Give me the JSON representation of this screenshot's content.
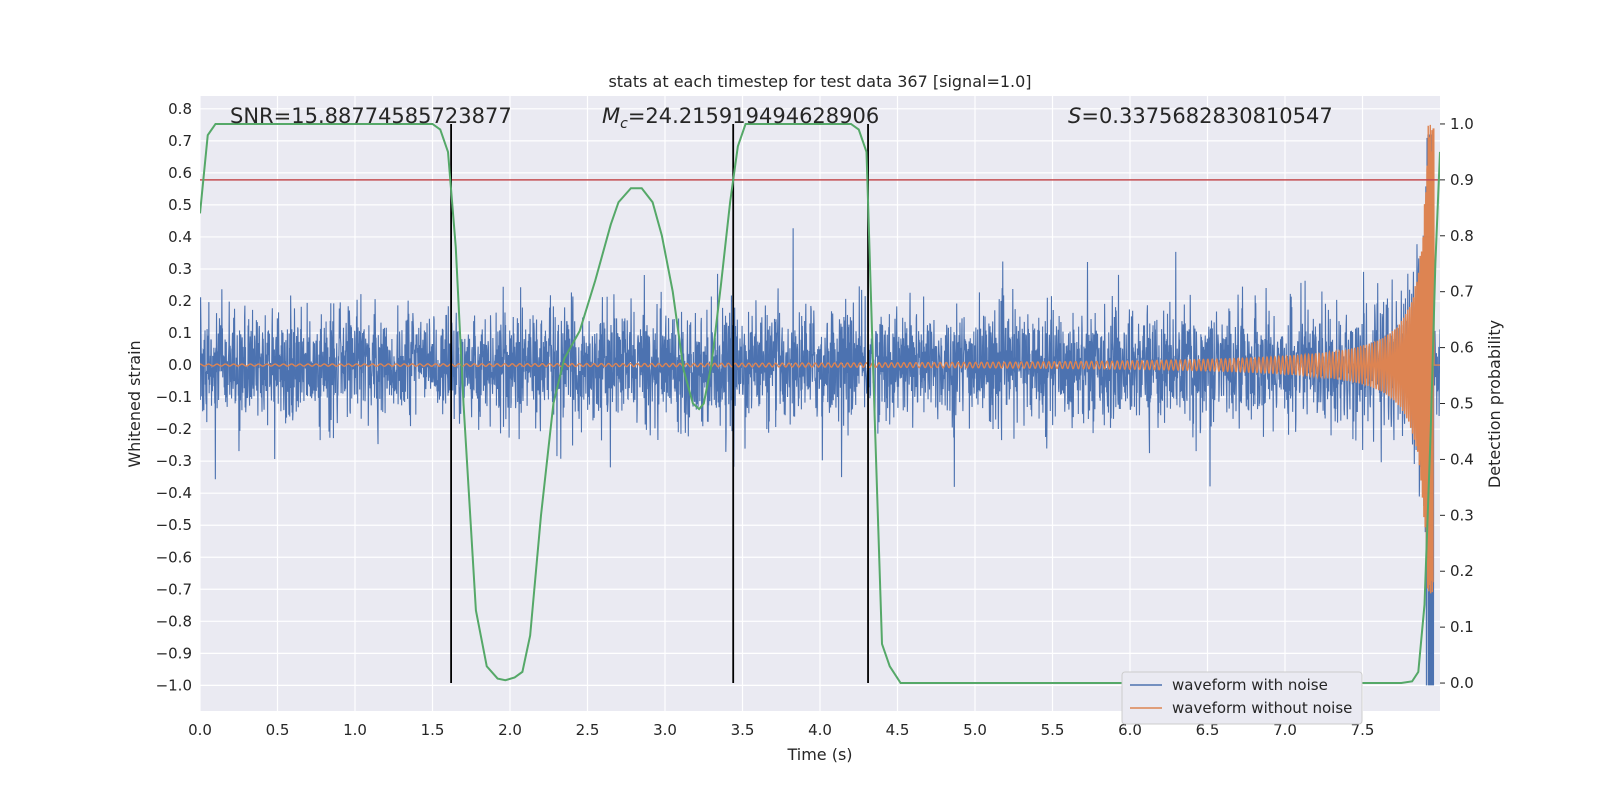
{
  "chart_data": {
    "type": "line",
    "title": "stats at each timestep for test data 367 [signal=1.0]",
    "xlabel": "Time (s)",
    "ylabel_left": "Whitened strain",
    "ylabel_right": "Detection probability",
    "xlim": [
      0.0,
      8.0
    ],
    "ylim_left": [
      -1.08,
      0.84
    ],
    "ylim_right": [
      -0.05,
      1.05
    ],
    "x_ticks": [
      "0.0",
      "0.5",
      "1.0",
      "1.5",
      "2.0",
      "2.5",
      "3.0",
      "3.5",
      "4.0",
      "4.5",
      "5.0",
      "5.5",
      "6.0",
      "6.5",
      "7.0",
      "7.5"
    ],
    "x_tick_values": [
      0.0,
      0.5,
      1.0,
      1.5,
      2.0,
      2.5,
      3.0,
      3.5,
      4.0,
      4.5,
      5.0,
      5.5,
      6.0,
      6.5,
      7.0,
      7.5
    ],
    "y_left_ticks": [
      "0.8",
      "0.7",
      "0.6",
      "0.5",
      "0.4",
      "0.3",
      "0.2",
      "0.1",
      "0.0",
      "−0.1",
      "−0.2",
      "−0.3",
      "−0.4",
      "−0.5",
      "−0.6",
      "−0.7",
      "−0.8",
      "−0.9",
      "−1.0"
    ],
    "y_left_tick_values": [
      0.8,
      0.7,
      0.6,
      0.5,
      0.4,
      0.3,
      0.2,
      0.1,
      0.0,
      -0.1,
      -0.2,
      -0.3,
      -0.4,
      -0.5,
      -0.6,
      -0.7,
      -0.8,
      -0.9,
      -1.0
    ],
    "y_right_ticks": [
      "1.0",
      "0.9",
      "0.8",
      "0.7",
      "0.6",
      "0.5",
      "0.4",
      "0.3",
      "0.2",
      "0.1",
      "0.0"
    ],
    "y_right_tick_values": [
      1.0,
      0.9,
      0.8,
      0.7,
      0.6,
      0.5,
      0.4,
      0.3,
      0.2,
      0.1,
      0.0
    ],
    "grid": true,
    "legend_position": "bottom-right",
    "annotations": {
      "snr": "SNR=15.88774585723877",
      "mc_prefix": "M",
      "mc_sub": "c",
      "mc_value": "=24.215919494628906",
      "s_prefix": "S",
      "s_value": "=0.3375682830810547"
    },
    "threshold_line": {
      "axis": "right",
      "value": 0.9,
      "color": "#c44e52"
    },
    "vertical_lines": [
      1.62,
      3.44,
      4.31
    ],
    "series": [
      {
        "name": "waveform with noise",
        "axis": "left",
        "color": "#4c72b0",
        "description_values": {
          "noise_amplitude_typical": 0.2,
          "peak_near_end": 0.75,
          "min_near_end": -1.0
        }
      },
      {
        "name": "waveform without noise",
        "axis": "left",
        "color": "#dd8452",
        "description_values": {
          "chirp_start_amplitude": 0.003,
          "chirp_end_amplitude": 0.75,
          "end_time": 7.96
        }
      },
      {
        "axis": "right",
        "color": "#55a868",
        "x": [
          0.0,
          0.05,
          0.1,
          0.2,
          0.3,
          0.5,
          0.8,
          1.0,
          1.2,
          1.4,
          1.5,
          1.55,
          1.6,
          1.65,
          1.7,
          1.78,
          1.85,
          1.92,
          1.97,
          2.03,
          2.08,
          2.13,
          2.2,
          2.28,
          2.35,
          2.45,
          2.55,
          2.65,
          2.7,
          2.78,
          2.85,
          2.92,
          2.98,
          3.05,
          3.12,
          3.18,
          3.22,
          3.25,
          3.3,
          3.36,
          3.42,
          3.47,
          3.52,
          3.58,
          3.65,
          3.8,
          4.0,
          4.2,
          4.25,
          4.3,
          4.35,
          4.4,
          4.45,
          4.52,
          4.6,
          5.0,
          6.0,
          7.0,
          7.75,
          7.82,
          7.86,
          7.9,
          7.94,
          7.97,
          8.0
        ],
        "y": [
          0.84,
          0.98,
          1.0,
          1.0,
          1.0,
          1.0,
          1.0,
          1.0,
          1.0,
          1.0,
          1.0,
          0.99,
          0.95,
          0.78,
          0.5,
          0.13,
          0.03,
          0.008,
          0.005,
          0.01,
          0.02,
          0.085,
          0.3,
          0.5,
          0.58,
          0.63,
          0.72,
          0.82,
          0.86,
          0.885,
          0.885,
          0.86,
          0.8,
          0.7,
          0.56,
          0.5,
          0.49,
          0.5,
          0.57,
          0.71,
          0.86,
          0.96,
          1.0,
          1.0,
          1.0,
          1.0,
          1.0,
          1.0,
          0.99,
          0.95,
          0.5,
          0.07,
          0.03,
          0.0,
          0.0,
          0.0,
          0.0,
          0.0,
          0.0,
          0.003,
          0.02,
          0.14,
          0.45,
          0.75,
          0.95
        ]
      }
    ]
  }
}
